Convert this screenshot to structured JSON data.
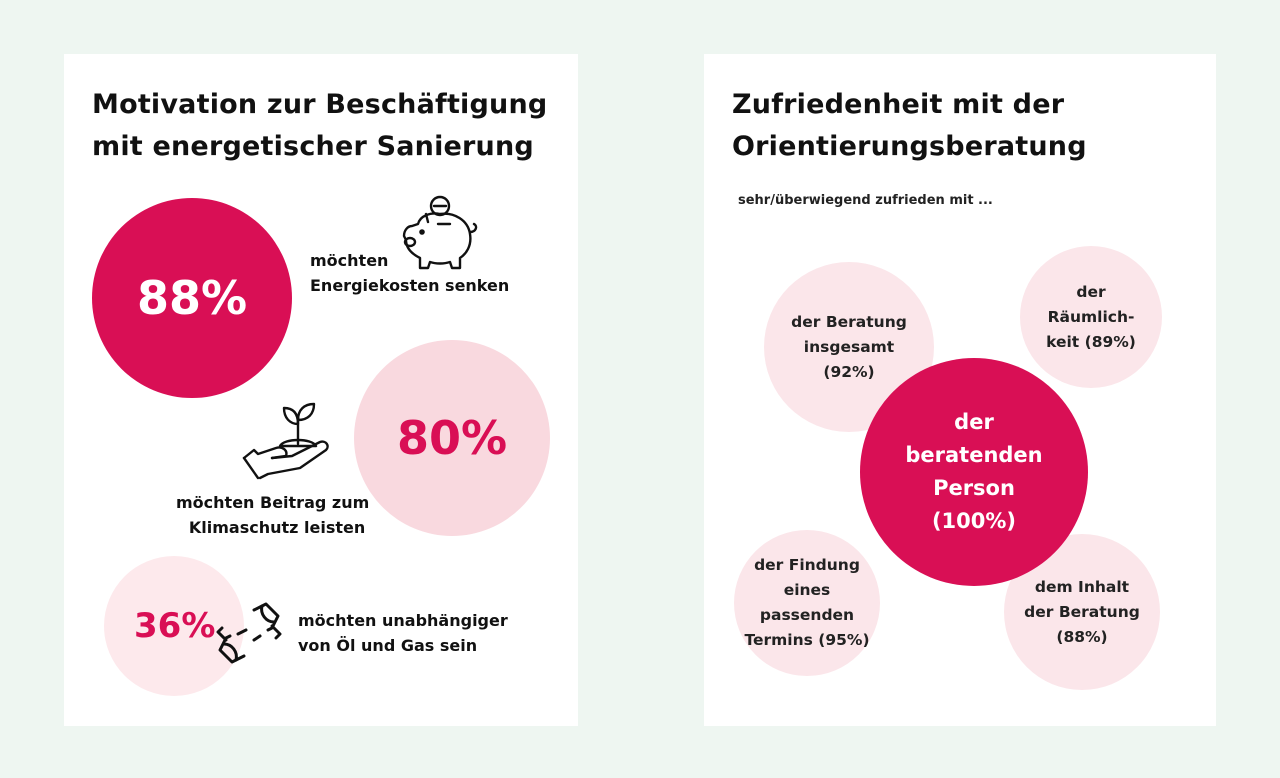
{
  "colors": {
    "accent": "#d90f55",
    "light": "#f9d9df",
    "lighter": "#fde9ec",
    "pale": "#fbe6ea"
  },
  "left_panel": {
    "title_line1": "Motivation zur Beschäftigung",
    "title_line2": "mit energetischer Sanierung",
    "items": [
      {
        "percent": "88%",
        "text_line1": "möchten",
        "text_line2": "Energiekosten senken",
        "icon": "piggy-bank-icon"
      },
      {
        "percent": "80%",
        "text_line1": "möchten Beitrag zum",
        "text_line2": "Klimaschutz leisten",
        "icon": "plant-in-hand-icon"
      },
      {
        "percent": "36%",
        "text_line1": "möchten unabhängiger",
        "text_line2": "von Öl und Gas sein",
        "icon": "unplugged-icon"
      }
    ]
  },
  "right_panel": {
    "title_line1": "Zufriedenheit mit der",
    "title_line2": "Orientierungsberatung",
    "subtitle": "sehr/überwiegend zufrieden mit ...",
    "bubbles": [
      {
        "lines": [
          "der Beratung",
          "insgesamt",
          "(92%)"
        ]
      },
      {
        "lines": [
          "der",
          "Räumlich-",
          "keit (89%)"
        ]
      },
      {
        "lines": [
          "der",
          "beratenden",
          "Person",
          "(100%)"
        ]
      },
      {
        "lines": [
          "der Findung",
          "eines passenden",
          "Termins (95%)"
        ]
      },
      {
        "lines": [
          "dem Inhalt",
          "der Beratung",
          "(88%)"
        ]
      }
    ]
  },
  "chart_data": [
    {
      "type": "bubble",
      "title": "Motivation zur Beschäftigung mit energetischer Sanierung",
      "categories": [
        "möchten Energiekosten senken",
        "möchten Beitrag zum Klimaschutz leisten",
        "möchten unabhängiger von Öl und Gas sein"
      ],
      "values": [
        88,
        80,
        36
      ],
      "unit": "%"
    },
    {
      "type": "bubble",
      "title": "Zufriedenheit mit der Orientierungsberatung",
      "subtitle": "sehr/überwiegend zufrieden mit ...",
      "categories": [
        "der Beratung insgesamt",
        "der Räumlichkeit",
        "der beratenden Person",
        "der Findung eines passenden Termins",
        "dem Inhalt der Beratung"
      ],
      "values": [
        92,
        89,
        100,
        95,
        88
      ],
      "unit": "%"
    }
  ]
}
